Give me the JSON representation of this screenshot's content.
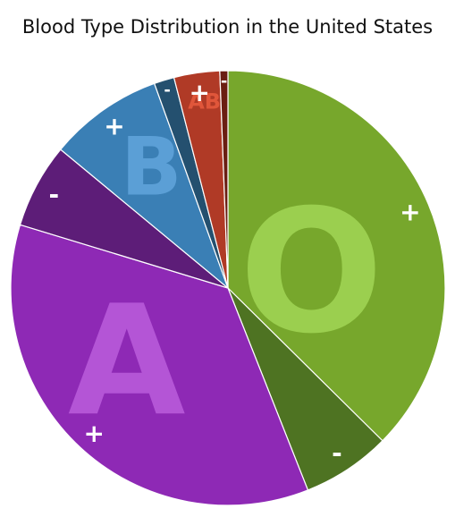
{
  "chart_data": {
    "type": "pie",
    "title": "Blood Type Distribution in the United States",
    "groups": [
      {
        "label": "O",
        "color": "#9bcf4f"
      },
      {
        "label": "A",
        "color": "#b455d6"
      },
      {
        "label": "B",
        "color": "#5b9fd6"
      },
      {
        "label": "AB",
        "color": "#e0563a"
      }
    ],
    "slices": [
      {
        "group": "O",
        "sign": "+",
        "value": 37.4,
        "color": "#77a72c"
      },
      {
        "group": "O",
        "sign": "-",
        "value": 6.6,
        "color": "#4e7322"
      },
      {
        "group": "A",
        "sign": "+",
        "value": 35.7,
        "color": "#8e29b5"
      },
      {
        "group": "A",
        "sign": "-",
        "value": 6.3,
        "color": "#5d1d78"
      },
      {
        "group": "B",
        "sign": "+",
        "value": 8.5,
        "color": "#3a7fb5"
      },
      {
        "group": "B",
        "sign": "-",
        "value": 1.5,
        "color": "#24506f"
      },
      {
        "group": "AB",
        "sign": "+",
        "value": 3.4,
        "color": "#b03a26"
      },
      {
        "group": "AB",
        "sign": "-",
        "value": 0.6,
        "color": "#6a1e12"
      }
    ]
  }
}
